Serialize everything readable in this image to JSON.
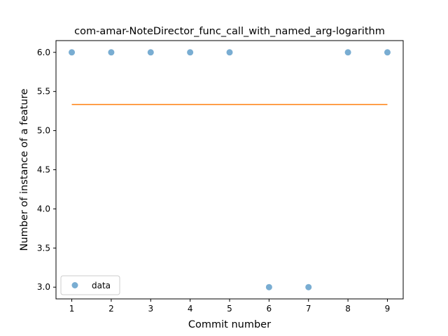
{
  "chart_data": {
    "type": "scatter",
    "title": "com-amar-NoteDirector_func_call_with_named_arg-logarithm",
    "xlabel": "Commit number",
    "ylabel": "Number of instance of a feature",
    "xlim": [
      0.6,
      9.4
    ],
    "ylim": [
      2.85,
      6.15
    ],
    "xticks": [
      1,
      2,
      3,
      4,
      5,
      6,
      7,
      8,
      9
    ],
    "yticks": [
      3.0,
      3.5,
      4.0,
      4.5,
      5.0,
      5.5,
      6.0
    ],
    "grid": false,
    "legend_position": "lower-left",
    "series": [
      {
        "name": "data",
        "kind": "scatter",
        "color": "#1f77b4",
        "x": [
          1,
          2,
          3,
          4,
          5,
          6,
          7,
          8,
          9
        ],
        "y": [
          6,
          6,
          6,
          6,
          6,
          3,
          3,
          6,
          6
        ]
      },
      {
        "kind": "line",
        "color": "#ff7f0e",
        "x": [
          1,
          9
        ],
        "y": [
          5.333,
          5.333
        ]
      }
    ]
  }
}
